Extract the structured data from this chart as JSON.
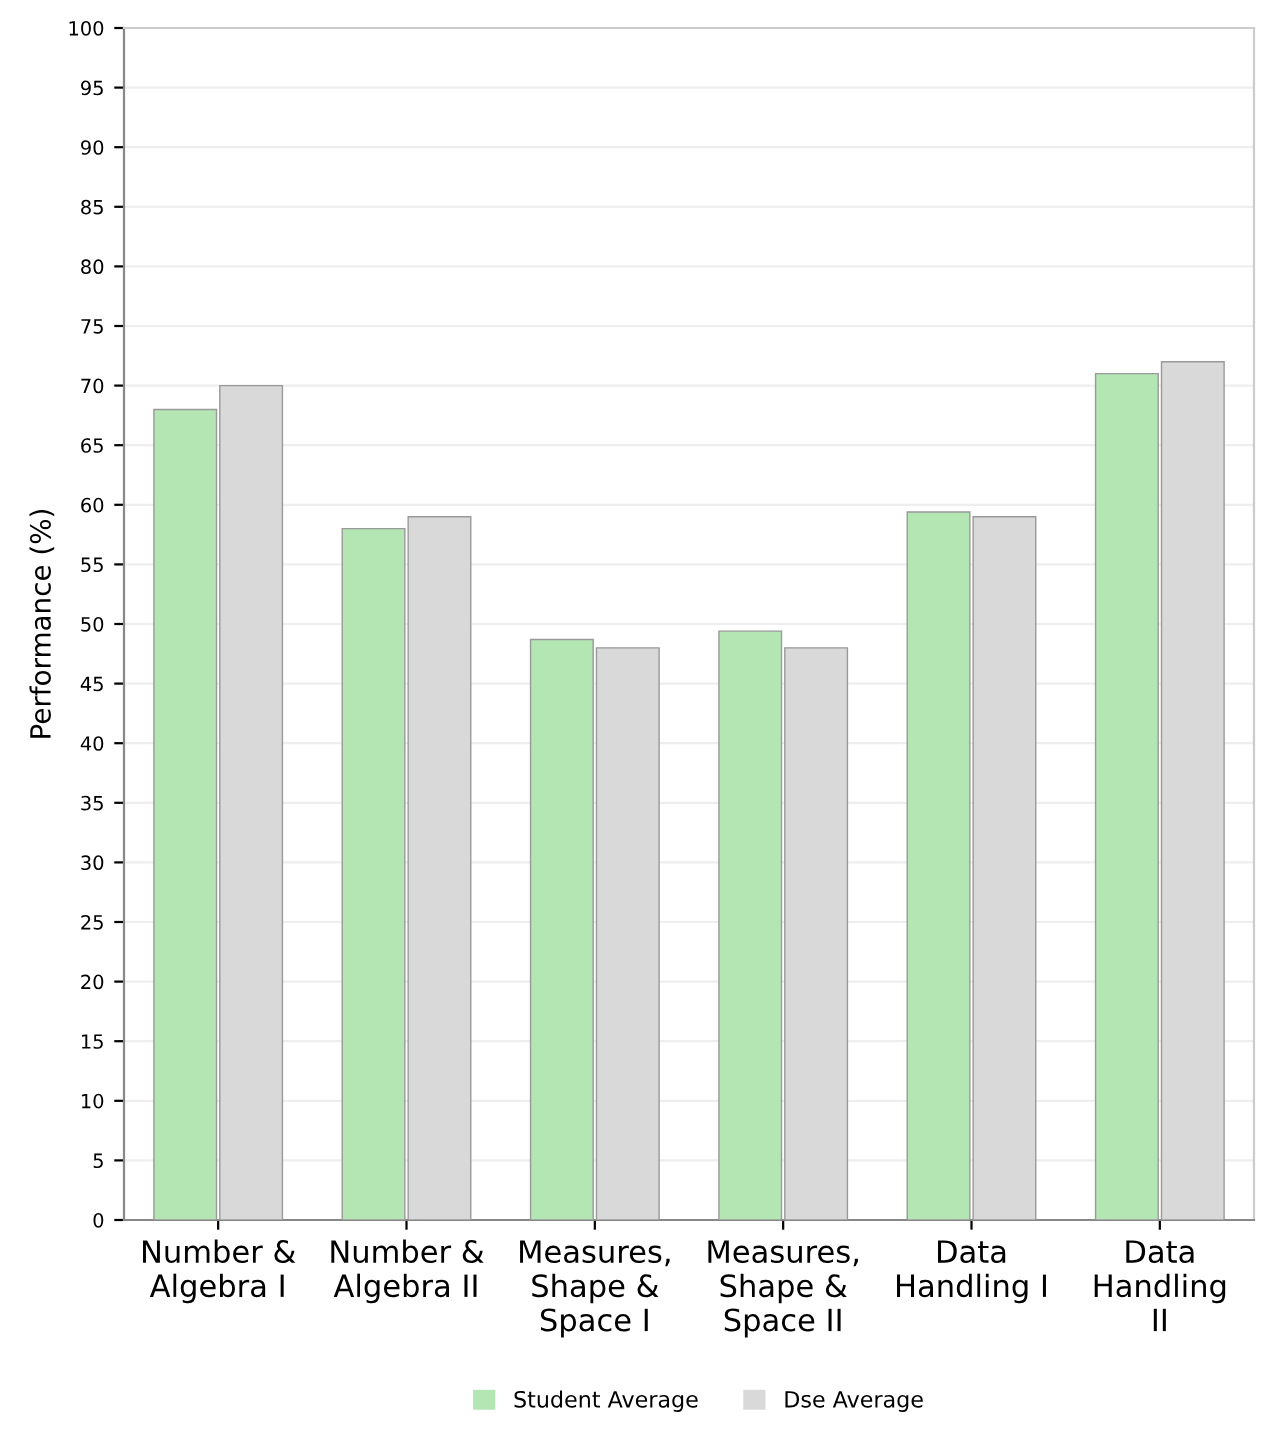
{
  "chart_data": {
    "type": "bar",
    "ylabel": "Performance (%)",
    "categories": [
      "Number &\nAlgebra I",
      "Number &\nAlgebra II",
      "Measures,\nShape &\nSpace I",
      "Measures,\nShape &\nSpace II",
      "Data\nHandling I",
      "Data\nHandling\nII"
    ],
    "series": [
      {
        "name": "Student Average",
        "color": "#b4e6b4",
        "values": [
          68,
          58,
          48.7,
          49.4,
          59.4,
          71
        ]
      },
      {
        "name": "Dse Average",
        "color": "#d9d9d9",
        "values": [
          70,
          59,
          48,
          48,
          59,
          72
        ]
      }
    ],
    "ylim": [
      0,
      100
    ],
    "yticks": [
      0,
      5,
      10,
      15,
      20,
      25,
      30,
      35,
      40,
      45,
      50,
      55,
      60,
      65,
      70,
      75,
      80,
      85,
      90,
      95,
      100
    ],
    "grid": "y",
    "legend": "bottom"
  }
}
